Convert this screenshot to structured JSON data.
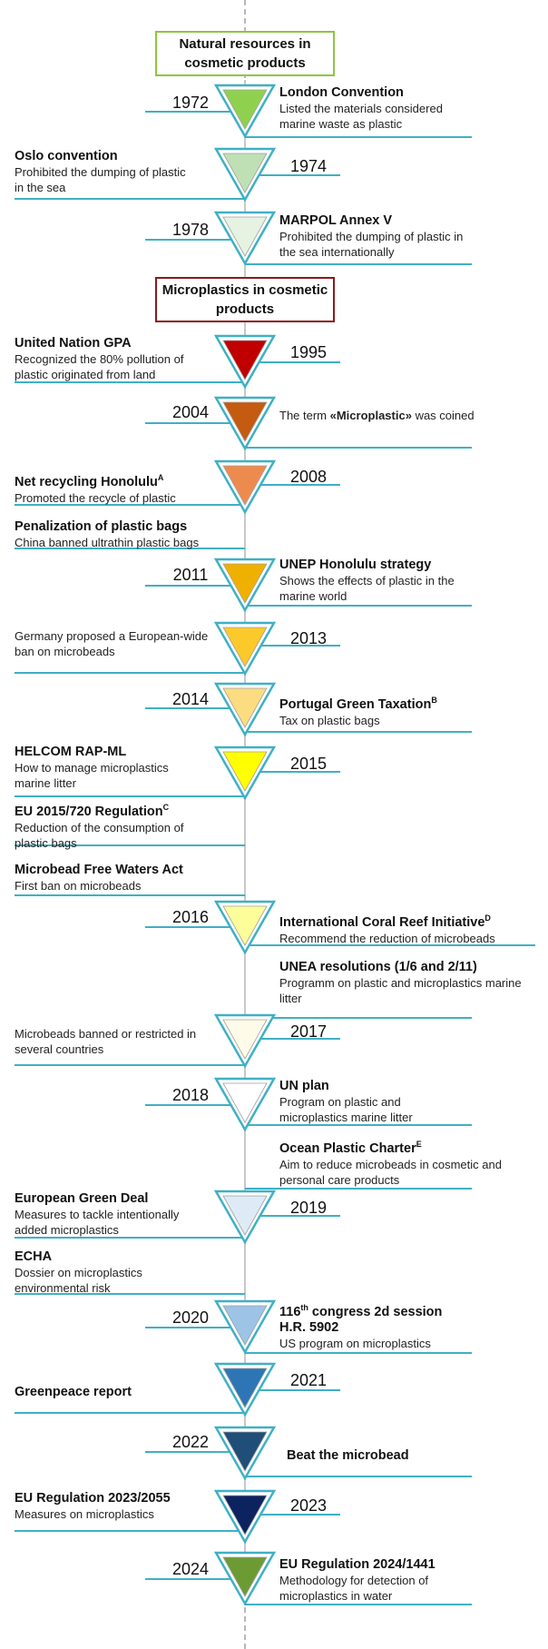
{
  "sections": {
    "natural": "Natural resources in cosmetic products",
    "micro": "Microplastics in cosmetic products"
  },
  "milestones": [
    {
      "year": "1972",
      "color": "#8fd14f"
    },
    {
      "year": "1974",
      "color": "#bfe0b4"
    },
    {
      "year": "1978",
      "color": "#e6f3e3"
    },
    {
      "year": "1995",
      "color": "#c00000"
    },
    {
      "year": "2004",
      "color": "#c55a11"
    },
    {
      "year": "2008",
      "color": "#ed8b4f"
    },
    {
      "year": "2011",
      "color": "#f0b000"
    },
    {
      "year": "2013",
      "color": "#fcc92a"
    },
    {
      "year": "2014",
      "color": "#fcdc80"
    },
    {
      "year": "2015",
      "color": "#ffff00"
    },
    {
      "year": "2016",
      "color": "#fdfd99"
    },
    {
      "year": "2017",
      "color": "#fefce9"
    },
    {
      "year": "2018",
      "color": "#ffffff"
    },
    {
      "year": "2019",
      "color": "#deebf7"
    },
    {
      "year": "2020",
      "color": "#9dc3e6"
    },
    {
      "year": "2021",
      "color": "#2e75b6"
    },
    {
      "year": "2022",
      "color": "#1f4e79"
    },
    {
      "year": "2023",
      "color": "#0c2360"
    },
    {
      "year": "2024",
      "color": "#6c9b34"
    }
  ],
  "events": {
    "london": {
      "title": "London Convention",
      "desc": "Listed the materials considered marine waste as plastic"
    },
    "oslo": {
      "title": "Oslo convention",
      "desc": "Prohibited the dumping of plastic in the sea"
    },
    "marpol": {
      "title": "MARPOL Annex V",
      "desc": "Prohibited the dumping of plastic in the sea internationally"
    },
    "ungpa": {
      "title": "United Nation GPA",
      "desc": "Recognized the 80% pollution of plastic originated from land"
    },
    "term": {
      "desc_pre": "The term ",
      "desc_bold": "«Microplastic»",
      "desc_post": " was coined"
    },
    "netrec": {
      "title": "Net recycling Honolulu",
      "sup": "A",
      "desc": "Promoted the recycle of plastic"
    },
    "penal": {
      "title": "Penalization of plastic bags",
      "desc": "China banned ultrathin plastic bags"
    },
    "unep": {
      "title": "UNEP Honolulu strategy",
      "desc": "Shows the effects of plastic in the marine world"
    },
    "germany": {
      "desc": "Germany proposed a European-wide ban on microbeads"
    },
    "portugal": {
      "title": "Portugal Green Taxation",
      "sup": "B",
      "desc": "Tax on plastic bags"
    },
    "helcom": {
      "title": "HELCOM RAP-ML",
      "desc": "How to manage microplastics marine litter"
    },
    "eu2015": {
      "title": "EU 2015/720 Regulation",
      "sup": "C",
      "desc": "Reduction of the consumption of plastic bags"
    },
    "mfwa": {
      "title": "Microbead Free Waters Act",
      "desc": "First ban on microbeads"
    },
    "icri": {
      "title": "International Coral Reef Initiative",
      "sup": "D",
      "desc": "Recommend the reduction of microbeads"
    },
    "unea": {
      "title": "UNEA resolutions (1/6 and 2/11)",
      "desc": "Programm on plastic and microplastics marine litter"
    },
    "banned": {
      "desc": "Microbeads banned or restricted in several countries"
    },
    "unplan": {
      "title": "UN plan",
      "desc": "Program on plastic and microplastics marine litter"
    },
    "ocean": {
      "title": "Ocean Plastic Charter",
      "sup": "E",
      "desc": "Aim to reduce microbeads in cosmetic and personal care products"
    },
    "greendeal": {
      "title": "European Green Deal",
      "desc": "Measures to tackle intentionally added microplastics"
    },
    "echa": {
      "title": "ECHA",
      "desc": "Dossier on microplastics environmental risk"
    },
    "congress": {
      "title_pre": "116",
      "title_sup": "th",
      "title_post": " congress 2d session",
      "title2": "H.R. 5902",
      "desc": "US program on microplastics"
    },
    "greenpeace": {
      "title": "Greenpeace report"
    },
    "beat": {
      "title": "Beat the microbead"
    },
    "eu2023": {
      "title": "EU Regulation 2023/2055",
      "desc": "Measures on microplastics"
    },
    "eu2024": {
      "title": "EU Regulation 2024/1441",
      "desc": "Methodology for detection of microplastics in water"
    }
  }
}
